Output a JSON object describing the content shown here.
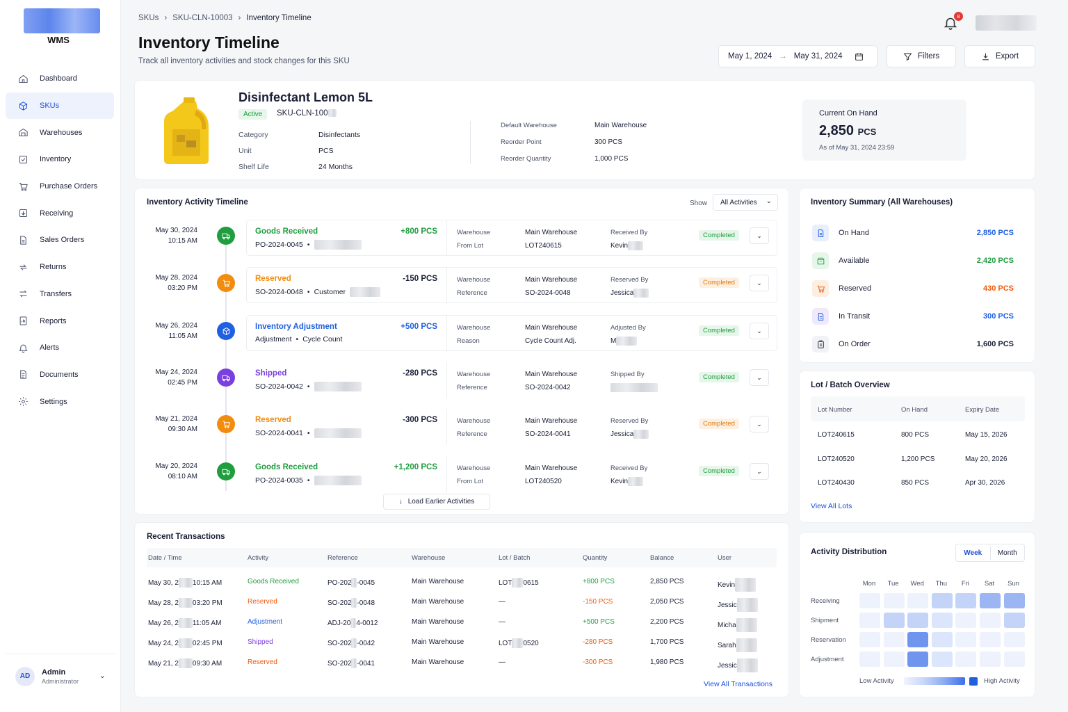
{
  "brand": {
    "name": "WMS"
  },
  "sidebar": {
    "items": [
      {
        "label": "Dashboard",
        "icon": "home-icon"
      },
      {
        "label": "SKUs",
        "icon": "cube-icon",
        "active": true
      },
      {
        "label": "Warehouses",
        "icon": "warehouse-icon"
      },
      {
        "label": "Inventory",
        "icon": "inventory-icon"
      },
      {
        "label": "Purchase Orders",
        "icon": "cart-icon"
      },
      {
        "label": "Receiving",
        "icon": "receiving-icon"
      },
      {
        "label": "Sales Orders",
        "icon": "document-icon"
      },
      {
        "label": "Returns",
        "icon": "returns-icon"
      },
      {
        "label": "Transfers",
        "icon": "transfer-icon"
      },
      {
        "label": "Reports",
        "icon": "reports-icon"
      },
      {
        "label": "Alerts",
        "icon": "bell-icon"
      },
      {
        "label": "Documents",
        "icon": "documents-icon"
      },
      {
        "label": "Settings",
        "icon": "gear-icon"
      }
    ]
  },
  "user": {
    "initials": "AD",
    "name": "Admin",
    "role": "Administrator"
  },
  "breadcrumb": [
    "SKUs",
    "SKU-CLN-10003",
    "Inventory Timeline"
  ],
  "page": {
    "title": "Inventory Timeline",
    "subtitle": "Track all inventory activities and stock changes for this SKU"
  },
  "notifications": {
    "count": "8"
  },
  "toolbar": {
    "date_from": "May 1, 2024",
    "date_to": "May 31, 2024",
    "filters": "Filters",
    "export": "Export"
  },
  "product": {
    "name": "Disinfectant Lemon 5L",
    "status": "Active",
    "sku": "SKU-CLN-100",
    "category_label": "Category",
    "category": "Disinfectants",
    "unit_label": "Unit",
    "unit": "PCS",
    "shelf_label": "Shelf Life",
    "shelf": "24 Months",
    "wh_label": "Default Warehouse",
    "wh": "Main Warehouse",
    "rp_label": "Reorder Point",
    "rp": "300 PCS",
    "rq_label": "Reorder Quantity",
    "rq": "1,000 PCS",
    "onhand_label": "Current On Hand",
    "onhand_value": "2,850",
    "onhand_unit": "PCS",
    "onhand_asof": "As of May 31, 2024 23:59"
  },
  "timeline": {
    "title": "Inventory Activity Timeline",
    "show_label": "Show",
    "filter": "All Activities",
    "load_more": "Load Earlier Activities",
    "items": [
      {
        "date": "May 30, 2024",
        "time": "10:15 AM",
        "type": "Goods Received",
        "qty": "+800 PCS",
        "ref": "PO-2024-0045",
        "l1": "Warehouse",
        "v1": "Main Warehouse",
        "l2": "From Lot",
        "v2": "LOT240615",
        "by_label": "Received By",
        "by": "Kevin",
        "status": "Completed",
        "color": "#1f9d3f",
        "icon": "truck-icon"
      },
      {
        "date": "May 28, 2024",
        "time": "03:20 PM",
        "type": "Reserved",
        "qty": "-150 PCS",
        "ref": "SO-2024-0048",
        "ref2": "Customer",
        "l1": "Warehouse",
        "v1": "Main Warehouse",
        "l2": "Reference",
        "v2": "SO-2024-0048",
        "by_label": "Reserved By",
        "by": "Jessica",
        "status": "Completed",
        "color": "#f28c0f",
        "icon": "cart-icon"
      },
      {
        "date": "May 26, 2024",
        "time": "11:05 AM",
        "type": "Inventory Adjustment",
        "qty": "+500 PCS",
        "ref": "Adjustment",
        "ref2": "Cycle Count",
        "l1": "Warehouse",
        "v1": "Main Warehouse",
        "l2": "Reason",
        "v2": "Cycle Count Adj.",
        "by_label": "Adjusted By",
        "by": "M",
        "status": "Completed",
        "color": "#1f5fe0",
        "icon": "cube-icon"
      },
      {
        "date": "May 24, 2024",
        "time": "02:45 PM",
        "type": "Shipped",
        "qty": "-280 PCS",
        "ref": "SO-2024-0042",
        "l1": "Warehouse",
        "v1": "Main Warehouse",
        "l2": "Reference",
        "v2": "SO-2024-0042",
        "by_label": "Shipped By",
        "by": "",
        "status": "Completed",
        "color": "#7b3fe0",
        "icon": "truck-icon"
      },
      {
        "date": "May 21, 2024",
        "time": "09:30 AM",
        "type": "Reserved",
        "qty": "-300 PCS",
        "ref": "SO-2024-0041",
        "l1": "Warehouse",
        "v1": "Main Warehouse",
        "l2": "Reference",
        "v2": "SO-2024-0041",
        "by_label": "Reserved By",
        "by": "Jessica",
        "status": "Completed",
        "color": "#f28c0f",
        "icon": "cart-icon"
      },
      {
        "date": "May 20, 2024",
        "time": "08:10 AM",
        "type": "Goods Received",
        "qty": "+1,200 PCS",
        "ref": "PO-2024-0035",
        "l1": "Warehouse",
        "v1": "Main Warehouse",
        "l2": "From Lot",
        "v2": "LOT240520",
        "by_label": "Received By",
        "by": "Kevin",
        "status": "Completed",
        "color": "#1f9d3f",
        "icon": "truck-icon"
      }
    ]
  },
  "transactions": {
    "title": "Recent Transactions",
    "view_all": "View All Transactions",
    "headers": [
      "Date / Time",
      "Activity",
      "Reference",
      "Warehouse",
      "Lot / Batch",
      "Quantity",
      "Balance",
      "User"
    ],
    "rows": [
      {
        "date": "May 30, 2",
        "time": "10:15 AM",
        "activity": "Goods Received",
        "ref": "PO-202",
        "ref_tail": "-0045",
        "wh": "Main Warehouse",
        "lot": "LOT",
        "lot_tail": "0615",
        "qty": "+800 PCS",
        "bal": "2,850 PCS",
        "user": "Kevin",
        "color": "#1f9d3f"
      },
      {
        "date": "May 28, 2",
        "time": "03:20 PM",
        "activity": "Reserved",
        "ref": "SO-202",
        "ref_tail": "-0048",
        "wh": "Main Warehouse",
        "lot": "—",
        "lot_tail": "",
        "qty": "-150 PCS",
        "bal": "2,050 PCS",
        "user": "Jessic",
        "color": "#f05a0a"
      },
      {
        "date": "May 26, 2",
        "time": "11:05 AM",
        "activity": "Adjustment",
        "ref": "ADJ-20",
        "ref_tail": "4-0012",
        "wh": "Main Warehouse",
        "lot": "—",
        "lot_tail": "",
        "qty": "+500 PCS",
        "bal": "2,200 PCS",
        "user": "Micha",
        "color": "#1f5fe0"
      },
      {
        "date": "May 24, 2",
        "time": "02:45 PM",
        "activity": "Shipped",
        "ref": "SO-202",
        "ref_tail": "-0042",
        "wh": "Main Warehouse",
        "lot": "LOT",
        "lot_tail": "0520",
        "qty": "-280 PCS",
        "bal": "1,700 PCS",
        "user": "Sarah",
        "color": "#7b3fe0"
      },
      {
        "date": "May 21, 2",
        "time": "09:30 AM",
        "activity": "Reserved",
        "ref": "SO-202",
        "ref_tail": "-0041",
        "wh": "Main Warehouse",
        "lot": "—",
        "lot_tail": "",
        "qty": "-300 PCS",
        "bal": "1,980 PCS",
        "user": "Jessic",
        "color": "#f05a0a"
      }
    ]
  },
  "summary": {
    "title": "Inventory Summary (All Warehouses)",
    "items": [
      {
        "label": "On Hand",
        "value": "2,850 PCS",
        "color": "#1f5fe0",
        "bg": "#e8eefc",
        "icon": "document-icon"
      },
      {
        "label": "Available",
        "value": "2,420 PCS",
        "color": "#1f9d3f",
        "bg": "#e6f6ea",
        "icon": "box-icon"
      },
      {
        "label": "Reserved",
        "value": "430 PCS",
        "color": "#f05a0a",
        "bg": "#fdeee2",
        "icon": "cart-icon"
      },
      {
        "label": "In Transit",
        "value": "300 PCS",
        "color": "#1f5fe0",
        "bg": "#f0e9fc",
        "icon": "document-icon"
      },
      {
        "label": "On Order",
        "value": "1,600 PCS",
        "color": "#1a1f36",
        "bg": "#f1f2f5",
        "icon": "clipboard-icon"
      }
    ]
  },
  "lots": {
    "title": "Lot / Batch Overview",
    "view_all": "View All Lots",
    "headers": [
      "Lot Number",
      "On Hand",
      "Expiry Date"
    ],
    "rows": [
      [
        "LOT240615",
        "800 PCS",
        "May 15, 2026"
      ],
      [
        "LOT240520",
        "1,200 PCS",
        "May 20, 2026"
      ],
      [
        "LOT240430",
        "850 PCS",
        "Apr 30, 2026"
      ]
    ]
  },
  "distribution": {
    "title": "Activity Distribution",
    "tab_week": "Week",
    "tab_month": "Month",
    "days": [
      "Mon",
      "Tue",
      "Wed",
      "Thu",
      "Fri",
      "Sat",
      "Sun"
    ],
    "rows": [
      "Receiving",
      "Shipment",
      "Reservation",
      "Adjustment"
    ],
    "levels": [
      [
        1,
        1,
        1,
        3,
        3,
        4,
        4
      ],
      [
        1,
        3,
        3,
        2,
        1,
        1,
        3
      ],
      [
        1,
        1,
        5,
        2,
        1,
        1,
        1
      ],
      [
        1,
        1,
        5,
        2,
        1,
        1,
        1
      ]
    ],
    "low": "Low Activity",
    "high": "High Activity"
  }
}
